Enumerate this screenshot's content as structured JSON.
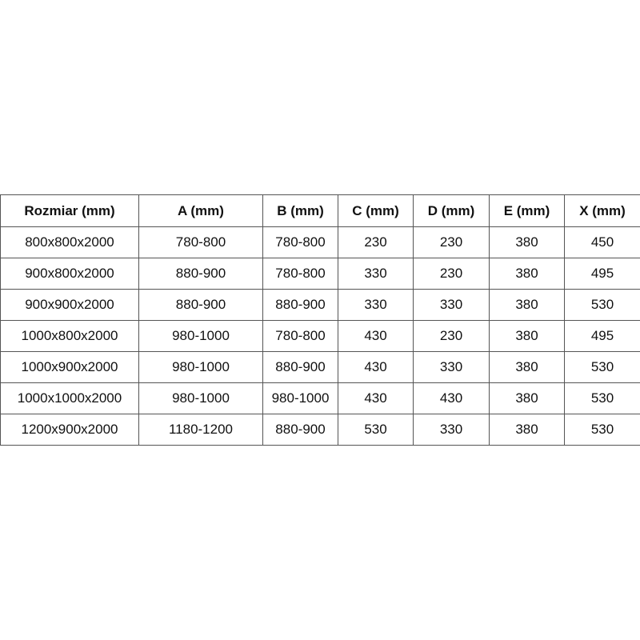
{
  "table": {
    "headers": [
      "Rozmiar (mm)",
      "A (mm)",
      "B (mm)",
      "C (mm)",
      "D (mm)",
      "E (mm)",
      "X (mm)"
    ],
    "rows": [
      [
        "800x800x2000",
        "780-800",
        "780-800",
        "230",
        "230",
        "380",
        "450"
      ],
      [
        "900x800x2000",
        "880-900",
        "780-800",
        "330",
        "230",
        "380",
        "495"
      ],
      [
        "900x900x2000",
        "880-900",
        "880-900",
        "330",
        "330",
        "380",
        "530"
      ],
      [
        "1000x800x2000",
        "980-1000",
        "780-800",
        "430",
        "230",
        "380",
        "495"
      ],
      [
        "1000x900x2000",
        "980-1000",
        "880-900",
        "430",
        "330",
        "380",
        "530"
      ],
      [
        "1000x1000x2000",
        "980-1000",
        "980-1000",
        "430",
        "430",
        "380",
        "530"
      ],
      [
        "1200x900x2000",
        "1180-1200",
        "880-900",
        "530",
        "330",
        "380",
        "530"
      ]
    ]
  }
}
